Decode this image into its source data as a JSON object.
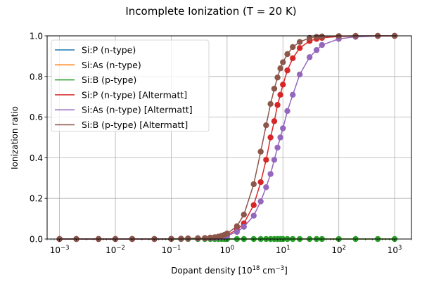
{
  "chart_data": {
    "type": "line",
    "title": "Incomplete Ionization (T = 20 K)",
    "xlabel": "Dopant density [10^18 cm^-3]",
    "xlabel_parts": {
      "main": "Dopant density [10",
      "exp1": "18",
      "mid": " cm",
      "exp2": "−3",
      "end": "]"
    },
    "ylabel": "Ionization ratio",
    "xscale": "log",
    "xlim": [
      0.0006,
      2000
    ],
    "ylim": [
      0,
      1.0
    ],
    "grid": true,
    "legend_placement": "upper-left",
    "x_ticks": [
      {
        "base": "10",
        "exp": "−3",
        "value": 0.001
      },
      {
        "base": "10",
        "exp": "−2",
        "value": 0.01
      },
      {
        "base": "10",
        "exp": "−1",
        "value": 0.1
      },
      {
        "base": "10",
        "exp": "0",
        "value": 1
      },
      {
        "base": "10",
        "exp": "1",
        "value": 10
      },
      {
        "base": "10",
        "exp": "2",
        "value": 100
      },
      {
        "base": "10",
        "exp": "3",
        "value": 1000
      }
    ],
    "y_ticks": [
      "0.0",
      "0.2",
      "0.4",
      "0.6",
      "0.8",
      "1.0"
    ],
    "x": [
      0.001,
      0.002,
      0.005,
      0.01,
      0.02,
      0.05,
      0.1,
      0.15,
      0.2,
      0.3,
      0.4,
      0.5,
      0.6,
      0.7,
      0.8,
      0.9,
      1,
      1.5,
      2,
      3,
      4,
      5,
      6,
      7,
      8,
      9,
      10,
      12,
      15,
      20,
      30,
      40,
      50,
      100,
      200,
      500,
      1000
    ],
    "series": [
      {
        "name": "Si:P (n-type)",
        "color": "#1f77b4",
        "markers": false,
        "values": [
          0,
          0,
          0,
          0,
          0,
          0,
          0,
          0,
          0,
          0,
          0,
          0,
          0,
          0,
          0,
          0,
          0,
          0,
          0,
          0,
          0,
          0,
          0,
          0,
          0,
          0,
          0,
          0,
          0,
          0,
          0,
          0,
          0,
          0,
          0,
          0,
          0
        ]
      },
      {
        "name": "Si:As (n-type)",
        "color": "#ff7f0e",
        "markers": false,
        "values": [
          0,
          0,
          0,
          0,
          0,
          0,
          0,
          0,
          0,
          0,
          0,
          0,
          0,
          0,
          0,
          0,
          0,
          0,
          0,
          0,
          0,
          0,
          0,
          0,
          0,
          0,
          0,
          0,
          0,
          0,
          0,
          0,
          0,
          0,
          0,
          0,
          0
        ]
      },
      {
        "name": "Si:B (p-type)",
        "color": "#2ca02c",
        "markers": true,
        "values": [
          0,
          0,
          0,
          0,
          0,
          0,
          0,
          0,
          0,
          0,
          0,
          0,
          0,
          0,
          0,
          0,
          0,
          0,
          0,
          0,
          0,
          0,
          0,
          0,
          0,
          0,
          0,
          0,
          0,
          0,
          0,
          0,
          0,
          0,
          0,
          0,
          0
        ]
      },
      {
        "name": "Si:P (n-type) [Altermatt]",
        "color": "#d62728",
        "markers": true,
        "values": [
          0,
          0,
          0,
          0,
          0,
          0,
          0.001,
          0.001,
          0.002,
          0.003,
          0.004,
          0.005,
          0.007,
          0.009,
          0.012,
          0.016,
          0.02,
          0.045,
          0.077,
          0.167,
          0.28,
          0.39,
          0.5,
          0.58,
          0.66,
          0.71,
          0.76,
          0.83,
          0.89,
          0.94,
          0.975,
          0.985,
          0.99,
          0.997,
          0.999,
          1.0,
          1.0
        ]
      },
      {
        "name": "Si:As (n-type) [Altermatt]",
        "color": "#9467bd",
        "markers": true,
        "values": [
          0,
          0,
          0,
          0,
          0,
          0,
          0.001,
          0.001,
          0.002,
          0.003,
          0.004,
          0.005,
          0.006,
          0.008,
          0.01,
          0.013,
          0.016,
          0.035,
          0.06,
          0.115,
          0.185,
          0.255,
          0.32,
          0.39,
          0.45,
          0.5,
          0.545,
          0.63,
          0.71,
          0.81,
          0.895,
          0.93,
          0.955,
          0.985,
          0.995,
          0.999,
          1.0
        ]
      },
      {
        "name": "Si:B (p-type) [Altermatt]",
        "color": "#8c564b",
        "markers": true,
        "values": [
          0,
          0,
          0,
          0,
          0,
          0,
          0.001,
          0.002,
          0.003,
          0.004,
          0.005,
          0.007,
          0.009,
          0.012,
          0.016,
          0.021,
          0.027,
          0.063,
          0.12,
          0.27,
          0.43,
          0.56,
          0.665,
          0.74,
          0.795,
          0.84,
          0.87,
          0.91,
          0.945,
          0.97,
          0.99,
          0.995,
          0.997,
          0.999,
          1.0,
          1.0,
          1.0
        ]
      }
    ]
  }
}
